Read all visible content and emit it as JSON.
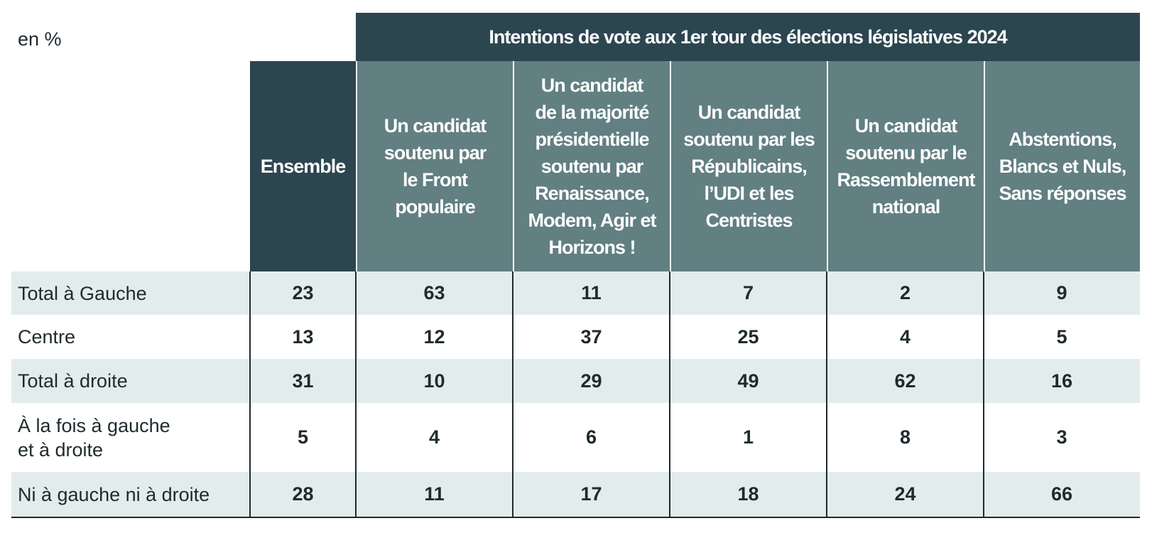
{
  "unit_label": "en %",
  "super_header": "Intentions de vote aux 1er tour des élections législatives 2024",
  "columns": [
    {
      "label": "Ensemble"
    },
    {
      "label": "Un candidat soutenu par le Front populaire"
    },
    {
      "label": "Un candidat de la majorité présidentielle soutenu par Renaissance, Modem, Agir et Horizons !"
    },
    {
      "label": "Un candidat soutenu par les Républicains, l’UDI et les Centristes"
    },
    {
      "label": "Un candidat soutenu par le Rassemblement national"
    },
    {
      "label": "Abstentions, Blancs et Nuls, Sans réponses"
    }
  ],
  "rows": [
    {
      "label": "Total à Gauche",
      "values": [
        "23",
        "63",
        "11",
        "7",
        "2",
        "9"
      ]
    },
    {
      "label": "Centre",
      "values": [
        "13",
        "12",
        "37",
        "25",
        "4",
        "5"
      ]
    },
    {
      "label": "Total à droite",
      "values": [
        "31",
        "10",
        "29",
        "49",
        "62",
        "16"
      ]
    },
    {
      "label": "À la fois à gauche et à droite",
      "values": [
        "5",
        "4",
        "6",
        "1",
        "8",
        "3"
      ]
    },
    {
      "label": "Ni à gauche ni à droite",
      "values": [
        "28",
        "11",
        "17",
        "18",
        "24",
        "66"
      ]
    }
  ],
  "colors": {
    "header_dark": "#2c4650",
    "header_mid": "#627f82",
    "row_shade": "#e3ecec",
    "text": "#1f2a2e"
  },
  "chart_data": {
    "type": "table",
    "title": "Intentions de vote aux 1er tour des élections législatives 2024",
    "unit": "en %",
    "columns": [
      "Ensemble",
      "Un candidat soutenu par le Front populaire",
      "Un candidat de la majorité présidentielle soutenu par Renaissance, Modem, Agir et Horizons !",
      "Un candidat soutenu par les Républicains, l’UDI et les Centristes",
      "Un candidat soutenu par le Rassemblement national",
      "Abstentions, Blancs et Nuls, Sans réponses"
    ],
    "categories": [
      "Total à Gauche",
      "Centre",
      "Total à droite",
      "À la fois à gauche et à droite",
      "Ni à gauche ni à droite"
    ],
    "series": [
      {
        "name": "Ensemble",
        "values": [
          23,
          13,
          31,
          5,
          28
        ]
      },
      {
        "name": "Un candidat soutenu par le Front populaire",
        "values": [
          63,
          12,
          10,
          4,
          11
        ]
      },
      {
        "name": "Un candidat de la majorité présidentielle soutenu par Renaissance, Modem, Agir et Horizons !",
        "values": [
          11,
          37,
          29,
          6,
          17
        ]
      },
      {
        "name": "Un candidat soutenu par les Républicains, l’UDI et les Centristes",
        "values": [
          7,
          25,
          49,
          1,
          18
        ]
      },
      {
        "name": "Un candidat soutenu par le Rassemblement national",
        "values": [
          2,
          4,
          62,
          8,
          24
        ]
      },
      {
        "name": "Abstentions, Blancs et Nuls, Sans réponses",
        "values": [
          9,
          5,
          16,
          3,
          66
        ]
      }
    ]
  }
}
